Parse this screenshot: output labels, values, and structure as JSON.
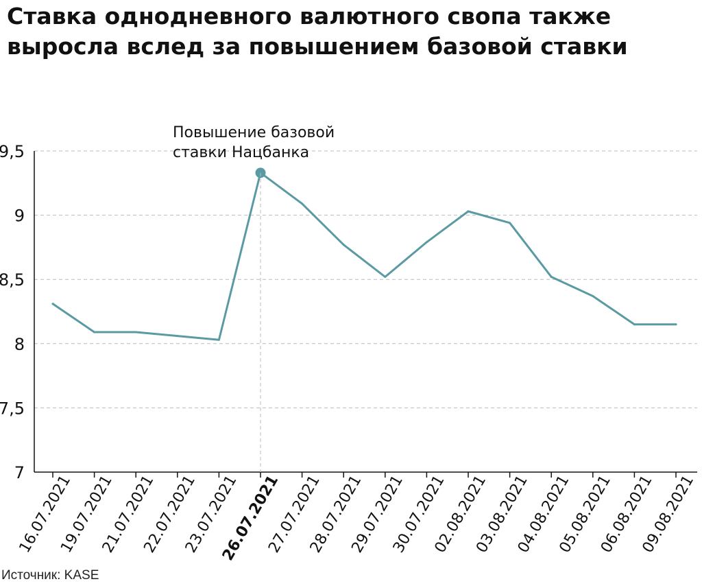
{
  "title_lines": [
    "Ставка однодневного валютного свопа также",
    "выросла вслед за повышением базовой ставки"
  ],
  "source": "Источник: KASE",
  "colors": {
    "line": "#5a9aa2",
    "grid": "#bbbbbb",
    "axis": "#111111",
    "text": "#111111"
  },
  "chart_data": {
    "type": "line",
    "title": "Ставка однодневного валютного свопа также выросла вслед за повышением базовой ставки",
    "categories": [
      "16.07.2021",
      "19.07.2021",
      "21.07.2021",
      "22.07.2021",
      "23.07.2021",
      "26.07.2021",
      "27.07.2021",
      "28.07.2021",
      "29.07.2021",
      "30.07.2021",
      "02.08.2021",
      "03.08.2021",
      "04.08.2021",
      "05.08.2021",
      "06.08.2021",
      "09.08.2021"
    ],
    "series": [
      {
        "values": [
          8.31,
          8.09,
          8.09,
          8.06,
          8.03,
          9.33,
          9.09,
          8.77,
          8.52,
          8.79,
          9.03,
          8.94,
          8.52,
          8.37,
          8.15,
          8.15
        ]
      }
    ],
    "yticks": [
      "7",
      "7,5",
      "8",
      "8,5",
      "9",
      "9,5"
    ],
    "ytick_values": [
      7,
      7.5,
      8,
      8.5,
      9,
      9.5
    ],
    "ylim": [
      7,
      9.5
    ],
    "grid": true,
    "highlight_index": 5,
    "annotation": {
      "index": 5,
      "lines": [
        "Повышение базовой",
        "ставки Нацбанка"
      ]
    }
  }
}
